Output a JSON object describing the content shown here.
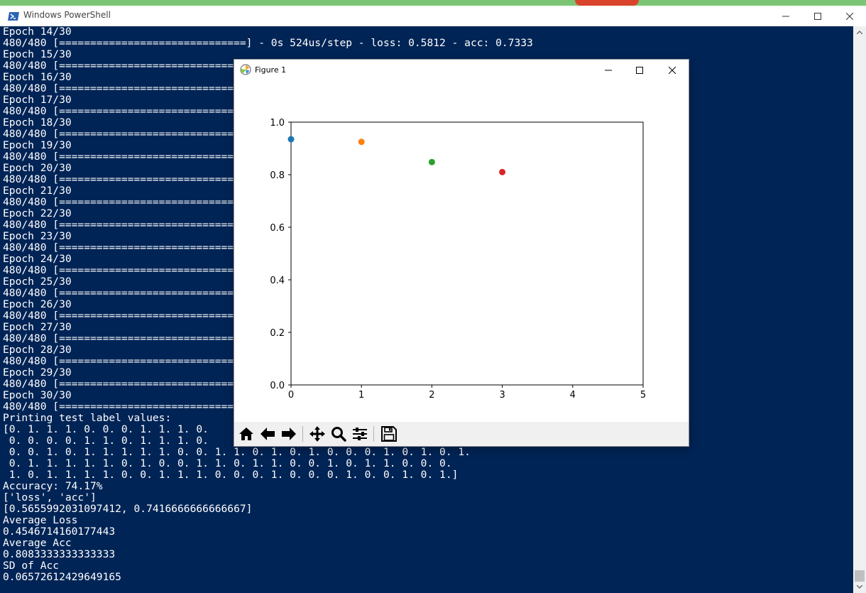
{
  "powershell": {
    "title": "Windows PowerShell",
    "icon": "powershell-icon",
    "console_lines": [
      "Epoch 14/30",
      "480/480 [==============================] - 0s 524us/step - loss: 0.5812 - acc: 0.7333",
      "Epoch 15/30",
      "480/480 [============================",
      "Epoch 16/30",
      "480/480 [============================",
      "Epoch 17/30",
      "480/480 [============================",
      "Epoch 18/30",
      "480/480 [============================",
      "Epoch 19/30",
      "480/480 [============================",
      "Epoch 20/30",
      "480/480 [============================",
      "Epoch 21/30",
      "480/480 [============================",
      "Epoch 22/30",
      "480/480 [============================",
      "Epoch 23/30",
      "480/480 [============================",
      "Epoch 24/30",
      "480/480 [============================",
      "Epoch 25/30",
      "480/480 [============================",
      "Epoch 26/30",
      "480/480 [============================",
      "Epoch 27/30",
      "480/480 [============================",
      "Epoch 28/30",
      "480/480 [============================",
      "Epoch 29/30",
      "480/480 [============================",
      "Epoch 30/30",
      "480/480 [============================",
      "Printing test label values:",
      "[0. 1. 1. 1. 0. 0. 0. 1. 1. 1. 0.",
      " 0. 0. 0. 0. 1. 1. 0. 1. 1. 1. 0.",
      " 0. 0. 1. 0. 1. 1. 1. 1. 1. 0. 0. 1. 1. 0. 1. 0. 1. 0. 0. 0. 1. 0. 1. 0. 1.",
      " 0. 1. 1. 1. 1. 1. 0. 1. 0. 0. 1. 1. 0. 1. 1. 0. 0. 1. 0. 1. 1. 0. 0. 0.",
      " 1. 0. 1. 1. 1. 1. 0. 0. 1. 1. 1. 0. 0. 0. 1. 0. 0. 0. 1. 0. 0. 1. 0. 1.]",
      "Accuracy: 74.17%",
      "['loss', 'acc']",
      "[0.5655992031097412, 0.7416666666666667]",
      "Average Loss",
      "0.4546714160177443",
      "Average Acc",
      "0.8083333333333333",
      "SD of Acc",
      "0.06572612429649165"
    ]
  },
  "figure": {
    "title": "Figure 1",
    "icon": "matplotlib-icon",
    "toolbar": [
      "home-icon",
      "back-arrow-icon",
      "forward-arrow-icon",
      "pan-icon",
      "zoom-icon",
      "configure-subplots-icon",
      "save-icon"
    ]
  },
  "chart_data": {
    "type": "scatter",
    "title": "",
    "xlabel": "",
    "ylabel": "",
    "xlim": [
      0,
      5
    ],
    "ylim": [
      0.0,
      1.0
    ],
    "xticks": [
      "0",
      "1",
      "2",
      "3",
      "4",
      "5"
    ],
    "yticks": [
      "0.0",
      "0.2",
      "0.4",
      "0.6",
      "0.8",
      "1.0"
    ],
    "grid": false,
    "series": [
      {
        "x": [
          0
        ],
        "y": [
          0.935
        ],
        "color": "#1f77b4"
      },
      {
        "x": [
          1
        ],
        "y": [
          0.925
        ],
        "color": "#ff7f0e"
      },
      {
        "x": [
          2
        ],
        "y": [
          0.848
        ],
        "color": "#2ca02c"
      },
      {
        "x": [
          3
        ],
        "y": [
          0.81
        ],
        "color": "#d62728"
      }
    ]
  }
}
